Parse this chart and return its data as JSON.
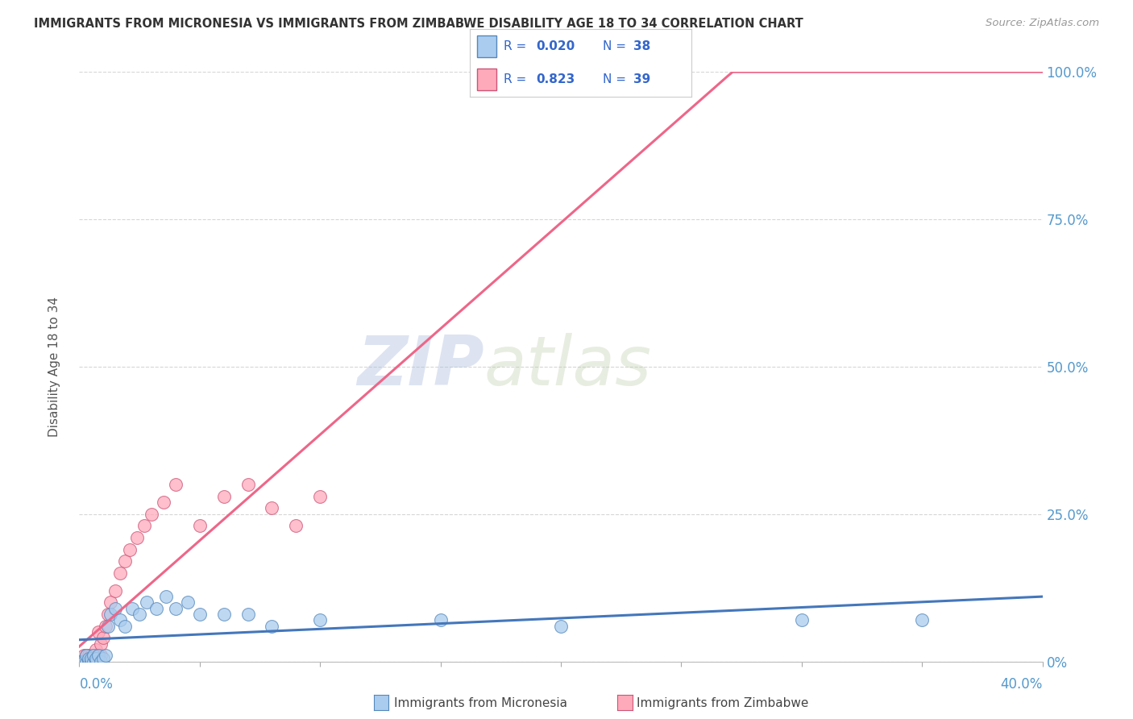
{
  "title": "IMMIGRANTS FROM MICRONESIA VS IMMIGRANTS FROM ZIMBABWE DISABILITY AGE 18 TO 34 CORRELATION CHART",
  "source": "Source: ZipAtlas.com",
  "ylabel": "Disability Age 18 to 34",
  "xlim": [
    0.0,
    0.4
  ],
  "ylim": [
    0.0,
    1.0
  ],
  "ytick_values": [
    0.0,
    0.25,
    0.5,
    0.75,
    1.0
  ],
  "ytick_labels": [
    "0%",
    "25.0%",
    "50.0%",
    "75.0%",
    "100.0%"
  ],
  "xtick_values": [
    0.0,
    0.05,
    0.1,
    0.15,
    0.2,
    0.25,
    0.3,
    0.35,
    0.4
  ],
  "watermark_zip": "ZIP",
  "watermark_atlas": "atlas",
  "series": [
    {
      "name": "Immigrants from Micronesia",
      "color": "#AACCEE",
      "edge_color": "#5588BB",
      "R": 0.02,
      "N": 38,
      "trend_color": "#4477BB",
      "x": [
        0.0,
        0.001,
        0.002,
        0.003,
        0.003,
        0.004,
        0.004,
        0.005,
        0.005,
        0.006,
        0.006,
        0.007,
        0.007,
        0.008,
        0.009,
        0.01,
        0.011,
        0.012,
        0.013,
        0.015,
        0.017,
        0.019,
        0.022,
        0.025,
        0.028,
        0.032,
        0.036,
        0.04,
        0.045,
        0.05,
        0.06,
        0.07,
        0.08,
        0.1,
        0.15,
        0.2,
        0.3,
        0.35
      ],
      "y": [
        0.0,
        0.0,
        0.0,
        0.0,
        0.01,
        0.0,
        0.005,
        0.0,
        0.005,
        0.0,
        0.01,
        0.0,
        0.005,
        0.01,
        0.0,
        0.005,
        0.01,
        0.06,
        0.08,
        0.09,
        0.07,
        0.06,
        0.09,
        0.08,
        0.1,
        0.09,
        0.11,
        0.09,
        0.1,
        0.08,
        0.08,
        0.08,
        0.06,
        0.07,
        0.07,
        0.06,
        0.07,
        0.07
      ]
    },
    {
      "name": "Immigrants from Zimbabwe",
      "color": "#FFAABB",
      "edge_color": "#CC5577",
      "R": 0.823,
      "N": 39,
      "trend_color": "#EE6688",
      "x": [
        0.0,
        0.0,
        0.001,
        0.001,
        0.002,
        0.002,
        0.003,
        0.003,
        0.004,
        0.004,
        0.005,
        0.005,
        0.006,
        0.006,
        0.007,
        0.007,
        0.008,
        0.008,
        0.009,
        0.009,
        0.01,
        0.011,
        0.012,
        0.013,
        0.015,
        0.017,
        0.019,
        0.021,
        0.024,
        0.027,
        0.03,
        0.035,
        0.04,
        0.05,
        0.06,
        0.07,
        0.08,
        0.09,
        0.1
      ],
      "y": [
        0.0,
        0.0,
        0.0,
        0.0,
        0.0,
        0.01,
        0.0,
        0.01,
        0.0,
        0.01,
        0.0,
        0.01,
        0.0,
        0.01,
        0.02,
        0.0,
        0.01,
        0.05,
        0.01,
        0.03,
        0.04,
        0.06,
        0.08,
        0.1,
        0.12,
        0.15,
        0.17,
        0.19,
        0.21,
        0.23,
        0.25,
        0.27,
        0.3,
        0.23,
        0.28,
        0.3,
        0.26,
        0.23,
        0.28
      ]
    }
  ],
  "legend_color": "#3366CC",
  "background_color": "#FFFFFF",
  "grid_color": "#CCCCCC",
  "title_color": "#333333",
  "source_color": "#999999",
  "axis_label_color": "#5599CC",
  "ylabel_color": "#555555"
}
